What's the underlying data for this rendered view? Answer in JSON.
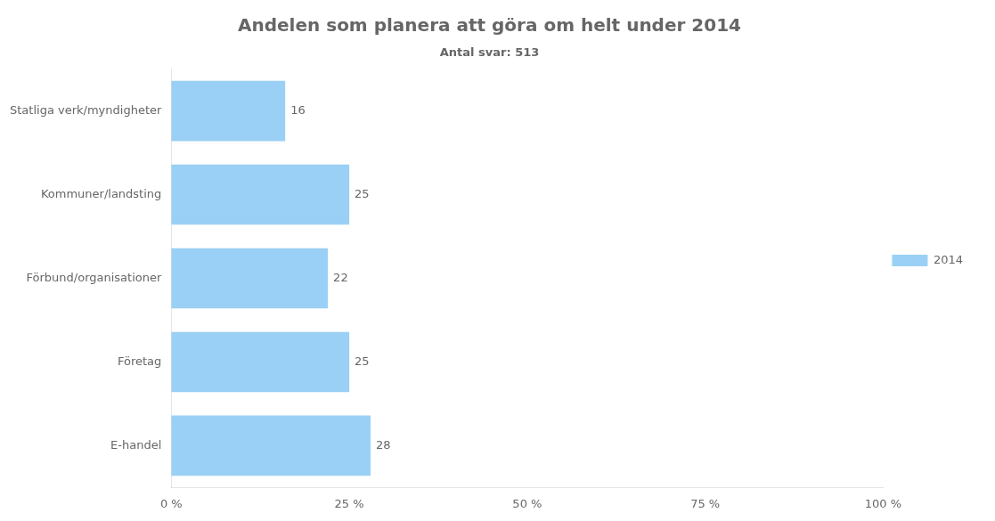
{
  "chart_data": {
    "type": "bar",
    "orientation": "horizontal",
    "title": "Andelen som planera att göra om helt under 2014",
    "subtitle": "Antal svar: 513",
    "categories": [
      "Statliga verk/myndigheter",
      "Kommuner/landsting",
      "Förbund/organisationer",
      "Företag",
      "E-handel"
    ],
    "series": [
      {
        "name": "2014",
        "values": [
          16,
          25,
          22,
          25,
          28
        ]
      }
    ],
    "xlim": [
      0,
      100
    ],
    "xticks": [
      {
        "value": 0,
        "label": "0 %"
      },
      {
        "value": 25,
        "label": "25 %"
      },
      {
        "value": 50,
        "label": "50 %"
      },
      {
        "value": 75,
        "label": "75 %"
      },
      {
        "value": 100,
        "label": "100 %"
      }
    ],
    "grid": false,
    "legend": "right",
    "data_labels": true
  }
}
